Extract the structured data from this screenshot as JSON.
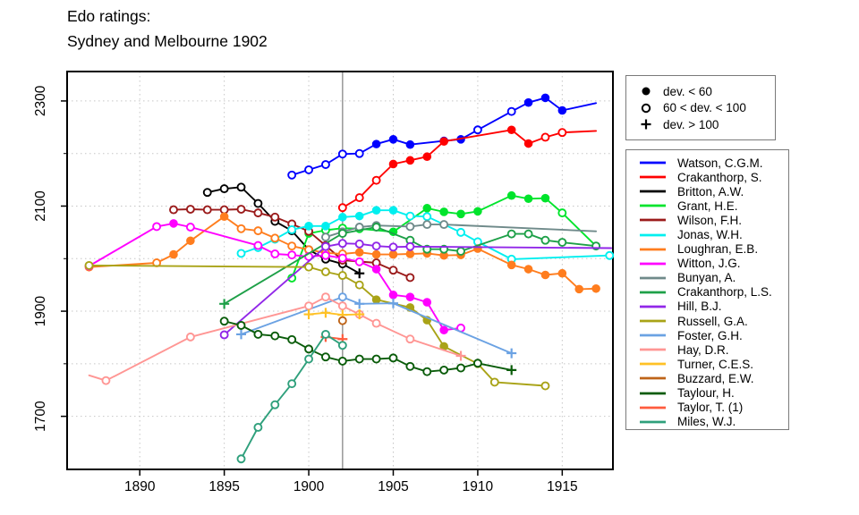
{
  "title": {
    "line1": "Edo ratings:",
    "line2": "Sydney and Melbourne 1902"
  },
  "marker_legend": [
    {
      "marker": "f",
      "label": "dev. < 60"
    },
    {
      "marker": "o",
      "label": "60 < dev. < 100"
    },
    {
      "marker": "p",
      "label": "dev. > 100"
    }
  ],
  "chart_data": {
    "type": "line",
    "title": "Edo ratings: Sydney and Melbourne 1902",
    "xlabel": "",
    "ylabel": "",
    "xlim": [
      1885.7,
      1918.0
    ],
    "ylim": [
      1599,
      2356
    ],
    "grid": true,
    "legend_position": "right",
    "reference_line": {
      "x": 1902,
      "color": "#8F8F8F"
    },
    "axes": {
      "x_ticks": [
        1890,
        1895,
        1900,
        1905,
        1910,
        1915
      ],
      "y_tick_labels": [
        1700,
        1900,
        2100,
        2300
      ],
      "y_grid": [
        1700,
        1800,
        1900,
        2000,
        2100,
        2200,
        2300
      ],
      "grid_color": "#C6C6C6"
    },
    "marker_key": {
      "f": "dev. < 60",
      "o": "60 < dev. < 100",
      "p": "dev. > 100",
      "n": "no symbol"
    },
    "series": [
      {
        "name": "Watson, C.G.M.",
        "color": "#0000FF",
        "points": [
          [
            1899,
            2159,
            "o"
          ],
          [
            1900,
            2169,
            "o"
          ],
          [
            1901,
            2179,
            "o"
          ],
          [
            1902,
            2199,
            "o"
          ],
          [
            1903,
            2200,
            "o"
          ],
          [
            1904,
            2218,
            "f"
          ],
          [
            1905,
            2227,
            "f"
          ],
          [
            1906,
            2217,
            "f"
          ],
          [
            1908,
            2224,
            "f"
          ],
          [
            1909,
            2227,
            "f"
          ],
          [
            1910,
            2245,
            "o"
          ],
          [
            1912,
            2280,
            "o"
          ],
          [
            1913,
            2297,
            "f"
          ],
          [
            1914,
            2306,
            "f"
          ],
          [
            1915,
            2282,
            "f"
          ],
          [
            1917,
            2296,
            "n"
          ]
        ]
      },
      {
        "name": "Crakanthorp, S.",
        "color": "#FF0000",
        "points": [
          [
            1902,
            2097,
            "o"
          ],
          [
            1903,
            2116,
            "o"
          ],
          [
            1904,
            2149,
            "o"
          ],
          [
            1905,
            2180,
            "f"
          ],
          [
            1906,
            2187,
            "f"
          ],
          [
            1907,
            2194,
            "f"
          ],
          [
            1908,
            2223,
            "f"
          ],
          [
            1912,
            2245,
            "f"
          ],
          [
            1913,
            2219,
            "f"
          ],
          [
            1914,
            2231,
            "o"
          ],
          [
            1915,
            2240,
            "o"
          ],
          [
            1917,
            2243,
            "n"
          ]
        ]
      },
      {
        "name": "Britton, A.W.",
        "color": "#000000",
        "points": [
          [
            1894,
            2126,
            "o"
          ],
          [
            1895,
            2133,
            "o"
          ],
          [
            1896,
            2136,
            "o"
          ],
          [
            1897,
            2105,
            "o"
          ],
          [
            1898,
            2071,
            "o"
          ],
          [
            1899,
            2053,
            "o"
          ],
          [
            1900,
            2017,
            "o"
          ],
          [
            1901,
            1999,
            "o"
          ],
          [
            1902,
            1990,
            "o"
          ],
          [
            1903,
            1972,
            "p"
          ]
        ]
      },
      {
        "name": "Grant, H.E.",
        "color": "#00E42C",
        "points": [
          [
            1899,
            1963,
            "o"
          ],
          [
            1900,
            2048,
            "f"
          ],
          [
            1901,
            2054,
            "o"
          ],
          [
            1902,
            2058,
            "o"
          ],
          [
            1903,
            2057,
            "o"
          ],
          [
            1905,
            2051,
            "f"
          ],
          [
            1907,
            2096,
            "f"
          ],
          [
            1908,
            2089,
            "f"
          ],
          [
            1909,
            2085,
            "f"
          ],
          [
            1910,
            2090,
            "f"
          ],
          [
            1912,
            2120,
            "f"
          ],
          [
            1913,
            2114,
            "f"
          ],
          [
            1914,
            2115,
            "f"
          ],
          [
            1915,
            2087,
            "o"
          ],
          [
            1917,
            2024,
            "f"
          ]
        ]
      },
      {
        "name": "Wilson, F.H.",
        "color": "#9B1B1B",
        "points": [
          [
            1892,
            2093,
            "o"
          ],
          [
            1893,
            2094,
            "o"
          ],
          [
            1894,
            2093,
            "o"
          ],
          [
            1895,
            2093,
            "o"
          ],
          [
            1896,
            2094,
            "o"
          ],
          [
            1897,
            2087,
            "o"
          ],
          [
            1898,
            2079,
            "o"
          ],
          [
            1899,
            2066,
            "o"
          ],
          [
            1900,
            2052,
            "o"
          ],
          [
            1901,
            2025,
            "o"
          ],
          [
            1902,
            1997,
            "o"
          ],
          [
            1904,
            1992,
            "o"
          ],
          [
            1905,
            1978,
            "o"
          ],
          [
            1906,
            1964,
            "o"
          ]
        ]
      },
      {
        "name": "Jonas, W.H.",
        "color": "#00EFEF",
        "points": [
          [
            1896,
            2010,
            "o"
          ],
          [
            1897,
            2021,
            "o"
          ],
          [
            1898,
            2037,
            "o"
          ],
          [
            1899,
            2055,
            "o"
          ],
          [
            1900,
            2062,
            "f"
          ],
          [
            1901,
            2062,
            "f"
          ],
          [
            1902,
            2079,
            "f"
          ],
          [
            1903,
            2081,
            "f"
          ],
          [
            1904,
            2092,
            "f"
          ],
          [
            1905,
            2092,
            "f"
          ],
          [
            1906,
            2081,
            "o"
          ],
          [
            1907,
            2080,
            "o"
          ],
          [
            1909,
            2050,
            "o"
          ],
          [
            1910,
            2032,
            "o"
          ],
          [
            1912,
            1999,
            "o"
          ],
          [
            1917.8,
            2006,
            "o"
          ]
        ]
      },
      {
        "name": "Loughran, E.B.",
        "color": "#FF7D1E",
        "points": [
          [
            1887,
            1984,
            "o"
          ],
          [
            1891,
            1992,
            "o"
          ],
          [
            1892,
            2008,
            "f"
          ],
          [
            1893,
            2034,
            "f"
          ],
          [
            1895,
            2080,
            "f"
          ],
          [
            1896,
            2057,
            "o"
          ],
          [
            1897,
            2053,
            "o"
          ],
          [
            1898,
            2039,
            "o"
          ],
          [
            1899,
            2024,
            "o"
          ],
          [
            1900,
            2017,
            "o"
          ],
          [
            1901,
            2011,
            "o"
          ],
          [
            1902,
            2009,
            "o"
          ],
          [
            1903,
            2012,
            "f"
          ],
          [
            1904,
            2008,
            "f"
          ],
          [
            1905,
            2008,
            "f"
          ],
          [
            1906,
            2009,
            "f"
          ],
          [
            1907,
            2010,
            "f"
          ],
          [
            1908,
            2006,
            "f"
          ],
          [
            1909,
            2007,
            "f"
          ],
          [
            1910,
            2019,
            "f"
          ],
          [
            1912,
            1988,
            "f"
          ],
          [
            1913,
            1980,
            "f"
          ],
          [
            1914,
            1969,
            "f"
          ],
          [
            1915,
            1972,
            "f"
          ],
          [
            1916,
            1942,
            "f"
          ],
          [
            1917,
            1943,
            "f"
          ]
        ]
      },
      {
        "name": "Witton, J.G.",
        "color": "#FF00FF",
        "points": [
          [
            1887,
            1986,
            "o"
          ],
          [
            1891,
            2061,
            "o"
          ],
          [
            1892,
            2067,
            "f"
          ],
          [
            1893,
            2060,
            "o"
          ],
          [
            1897,
            2025,
            "o"
          ],
          [
            1898,
            2009,
            "o"
          ],
          [
            1899,
            2007,
            "o"
          ],
          [
            1900,
            2004,
            "o"
          ],
          [
            1901,
            2006,
            "o"
          ],
          [
            1902,
            2001,
            "o"
          ],
          [
            1903,
            1994,
            "o"
          ],
          [
            1904,
            1980,
            "f"
          ],
          [
            1905,
            1931,
            "f"
          ],
          [
            1906,
            1927,
            "f"
          ],
          [
            1907,
            1917,
            "f"
          ],
          [
            1908,
            1864,
            "f"
          ],
          [
            1909,
            1868,
            "o"
          ]
        ]
      },
      {
        "name": "Bunyan, A.",
        "color": "#6F8A8A",
        "points": [
          [
            1901,
            2041,
            "o"
          ],
          [
            1902,
            2051,
            "o"
          ],
          [
            1903,
            2060,
            "o"
          ],
          [
            1904,
            2063,
            "o"
          ],
          [
            1906,
            2061,
            "o"
          ],
          [
            1907,
            2065,
            "o"
          ],
          [
            1908,
            2065,
            "o"
          ],
          [
            1917,
            2052,
            "n"
          ]
        ]
      },
      {
        "name": "Crakanthorp, L.S.",
        "color": "#1EA048",
        "points": [
          [
            1895,
            1914,
            "p"
          ],
          [
            1902,
            2048,
            "o"
          ],
          [
            1904,
            2060,
            "o"
          ],
          [
            1906,
            2035,
            "o"
          ],
          [
            1907,
            2018,
            "o"
          ],
          [
            1908,
            2018,
            "o"
          ],
          [
            1909,
            2014,
            "o"
          ],
          [
            1912,
            2047,
            "o"
          ],
          [
            1913,
            2047,
            "o"
          ],
          [
            1914,
            2035,
            "o"
          ],
          [
            1915,
            2031,
            "o"
          ],
          [
            1917,
            2024,
            "o"
          ]
        ]
      },
      {
        "name": "Hill, B.J.",
        "color": "#9127E8",
        "points": [
          [
            1895,
            1855,
            "o"
          ],
          [
            1901,
            2023,
            "o"
          ],
          [
            1902,
            2029,
            "o"
          ],
          [
            1903,
            2028,
            "o"
          ],
          [
            1904,
            2024,
            "o"
          ],
          [
            1905,
            2022,
            "o"
          ],
          [
            1906,
            2023,
            "o"
          ],
          [
            1917.9,
            2020,
            "n"
          ]
        ]
      },
      {
        "name": "Russell, G.A.",
        "color": "#A9A317",
        "points": [
          [
            1887,
            1987,
            "o"
          ],
          [
            1900,
            1984,
            "o"
          ],
          [
            1901,
            1975,
            "o"
          ],
          [
            1902,
            1968,
            "o"
          ],
          [
            1903,
            1950,
            "o"
          ],
          [
            1904,
            1922,
            "f"
          ],
          [
            1906,
            1907,
            "f"
          ],
          [
            1907,
            1883,
            "f"
          ],
          [
            1908,
            1833,
            "f"
          ],
          [
            1910,
            1800,
            "f"
          ],
          [
            1911,
            1765,
            "o"
          ],
          [
            1914,
            1758,
            "o"
          ]
        ]
      },
      {
        "name": "Foster, G.H.",
        "color": "#6BA2E3",
        "points": [
          [
            1896,
            1856,
            "p"
          ],
          [
            1902,
            1927,
            "o"
          ],
          [
            1903,
            1914,
            "p"
          ],
          [
            1905,
            1915,
            "p"
          ],
          [
            1912,
            1820,
            "p"
          ]
        ]
      },
      {
        "name": "Hay, D.R.",
        "color": "#FF9694",
        "points": [
          [
            1887,
            1778,
            "n"
          ],
          [
            1888,
            1768,
            "o"
          ],
          [
            1893,
            1851,
            "o"
          ],
          [
            1900,
            1910,
            "o"
          ],
          [
            1901,
            1927,
            "o"
          ],
          [
            1902,
            1910,
            "o"
          ],
          [
            1903,
            1894,
            "o"
          ],
          [
            1904,
            1877,
            "o"
          ],
          [
            1906,
            1847,
            "o"
          ],
          [
            1909,
            1815,
            "p"
          ]
        ]
      },
      {
        "name": "Turner, C.E.S.",
        "color": "#FFC125",
        "points": [
          [
            1900,
            1894,
            "p"
          ],
          [
            1901,
            1897,
            "p"
          ],
          [
            1902,
            1893,
            "p"
          ],
          [
            1903,
            1894,
            "p"
          ]
        ]
      },
      {
        "name": "Buzzard, E.W.",
        "color": "#BE6418",
        "points": [
          [
            1902,
            1882,
            "o"
          ]
        ]
      },
      {
        "name": "Taylour, H.",
        "color": "#0A5C0A",
        "points": [
          [
            1895,
            1881,
            "o"
          ],
          [
            1896,
            1873,
            "o"
          ],
          [
            1897,
            1856,
            "o"
          ],
          [
            1898,
            1853,
            "o"
          ],
          [
            1899,
            1846,
            "o"
          ],
          [
            1900,
            1828,
            "o"
          ],
          [
            1901,
            1813,
            "o"
          ],
          [
            1902,
            1805,
            "o"
          ],
          [
            1903,
            1809,
            "o"
          ],
          [
            1904,
            1809,
            "o"
          ],
          [
            1905,
            1811,
            "o"
          ],
          [
            1906,
            1795,
            "o"
          ],
          [
            1907,
            1785,
            "o"
          ],
          [
            1908,
            1788,
            "o"
          ],
          [
            1909,
            1792,
            "o"
          ],
          [
            1910,
            1801,
            "o"
          ],
          [
            1912,
            1788,
            "p"
          ]
        ]
      },
      {
        "name": "Taylor, T. (1)",
        "color": "#FF5C3E",
        "points": [
          [
            1901,
            1851,
            "p"
          ],
          [
            1902,
            1847,
            "p"
          ]
        ]
      },
      {
        "name": "Miles, W.J.",
        "color": "#2FA07C",
        "points": [
          [
            1896,
            1619,
            "o"
          ],
          [
            1897,
            1679,
            "o"
          ],
          [
            1898,
            1722,
            "o"
          ],
          [
            1899,
            1762,
            "o"
          ],
          [
            1900,
            1809,
            "o"
          ],
          [
            1901,
            1856,
            "o"
          ],
          [
            1902,
            1835,
            "o"
          ]
        ]
      }
    ]
  }
}
